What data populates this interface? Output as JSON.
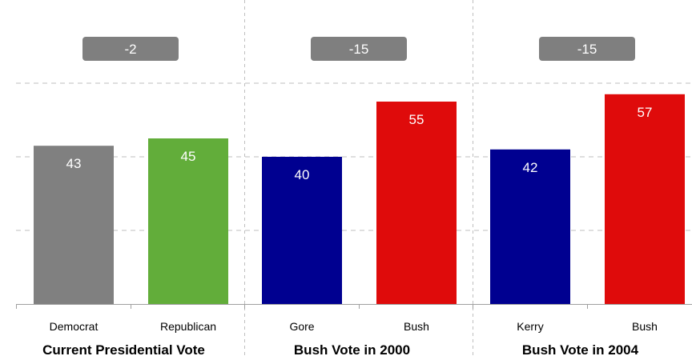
{
  "chart_data": {
    "type": "bar",
    "ylim": [
      0,
      70
    ],
    "grid": true,
    "groups": [
      {
        "title": "Current Presidential Vote",
        "difference": "-2",
        "bars": [
          {
            "category": "Democrat",
            "value": 43,
            "color": "#808080"
          },
          {
            "category": "Republican",
            "value": 45,
            "color": "#62AD3A"
          }
        ]
      },
      {
        "title": "Bush Vote in 2000",
        "difference": "-15",
        "bars": [
          {
            "category": "Gore",
            "value": 40,
            "color": "#000090"
          },
          {
            "category": "Bush",
            "value": 55,
            "color": "#DF0B0B"
          }
        ]
      },
      {
        "title": "Bush Vote in 2004",
        "difference": "-15",
        "bars": [
          {
            "category": "Kerry",
            "value": 42,
            "color": "#000090"
          },
          {
            "category": "Bush",
            "value": 57,
            "color": "#DF0B0B"
          }
        ]
      }
    ]
  }
}
